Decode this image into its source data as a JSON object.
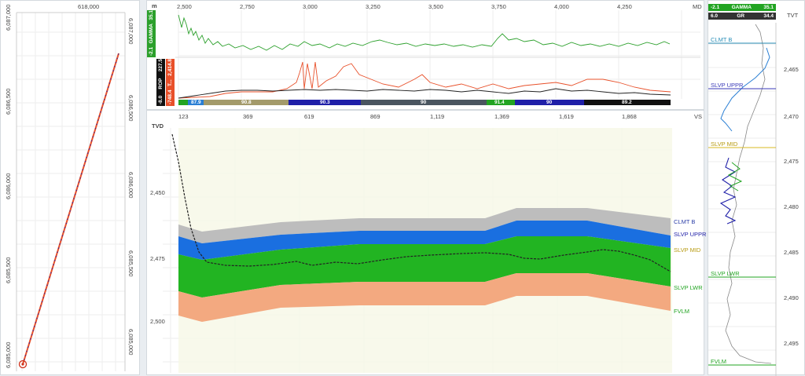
{
  "map": {
    "x_tick": "618,000",
    "left_y_ticks": [
      "6,087,000",
      "6,086,500",
      "6,086,000",
      "6,085,500",
      "6,085,000"
    ],
    "right_y_ticks": [
      "6,087,000",
      "6,086,500",
      "6,086,000",
      "6,085,500",
      "6,085,000"
    ]
  },
  "logs": {
    "md_unit": "m",
    "md_label": "MD",
    "md_ticks": [
      "2,500",
      "2,750",
      "3,000",
      "3,250",
      "3,500",
      "3,750",
      "4,000",
      "4,250"
    ],
    "gamma_track": {
      "min": "-2.1",
      "name": "GAMMA",
      "max": "35.1",
      "color": "#2ca02c"
    },
    "rop_track": {
      "min": "-8.0",
      "name": "ROP",
      "max": "227.5",
      "color": "#222222"
    },
    "t_track": {
      "min": "-748.4",
      "name": "T...",
      "max": "2,414.8",
      "color": "#e8502a"
    },
    "segments": [
      {
        "value": "",
        "color": "#22a422"
      },
      {
        "value": "87.9",
        "color": "#2a7fd4"
      },
      {
        "value": "90.8",
        "color": "#a39a6a"
      },
      {
        "value": "90.3",
        "color": "#1f1fa8"
      },
      {
        "value": "90",
        "color": "#4a5560"
      },
      {
        "value": "91.4",
        "color": "#22a422"
      },
      {
        "value": "90",
        "color": "#1f1fa8"
      },
      {
        "value": "89.2",
        "color": "#111111"
      }
    ]
  },
  "section": {
    "vs_ticks": [
      "123",
      "369",
      "619",
      "869",
      "1,119",
      "1,369",
      "1,619",
      "1,868"
    ],
    "vs_label": "VS",
    "tvd_label": "TVD",
    "tvd_ticks": [
      "2,450",
      "2,475",
      "2,500"
    ],
    "formations": [
      {
        "name": "CLMT B",
        "color": "#2c3fa8"
      },
      {
        "name": "SLVP UPPR",
        "color": "#1f1fa8"
      },
      {
        "name": "SLVP MID",
        "color": "#b79a10"
      },
      {
        "name": "SLVP LWR",
        "color": "#22a422"
      },
      {
        "name": "FVLM",
        "color": "#22a422"
      }
    ]
  },
  "typelog": {
    "header1": {
      "min": "-2.1",
      "name": "GAMMA",
      "max": "35.1"
    },
    "header2": {
      "min": "6.0",
      "name": "GR",
      "max": "34.4"
    },
    "tvt_label": "TVT",
    "tvt_ticks": [
      "2,465",
      "2,470",
      "2,475",
      "2,480",
      "2,485",
      "2,490",
      "2,495"
    ],
    "tops": [
      {
        "name": "CLMT B",
        "color": "#2a8fb8"
      },
      {
        "name": "SLVP UPPR",
        "color": "#3a3ab8"
      },
      {
        "name": "SLVP MID",
        "color": "#b79a10"
      },
      {
        "name": "SLVP LWR",
        "color": "#22a422"
      },
      {
        "name": "FVLM",
        "color": "#22a422"
      }
    ]
  }
}
